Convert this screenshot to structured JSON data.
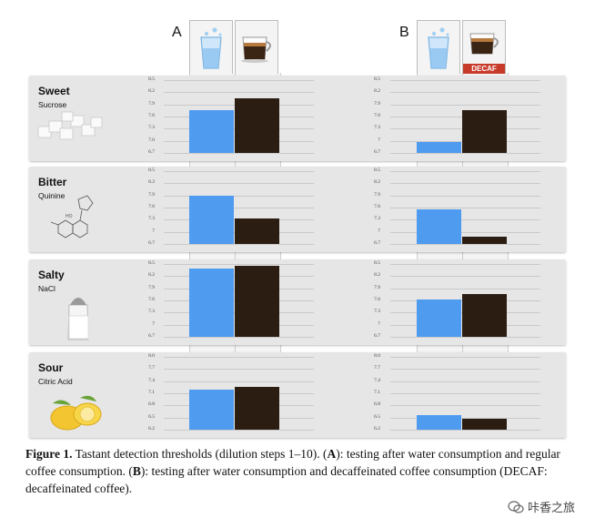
{
  "panels": [
    "A",
    "B"
  ],
  "decaf_label": "DECAF",
  "colors": {
    "water": "#4e9bf0",
    "coffee": "#2b1d12",
    "panel_bg": "#e6e6e6"
  },
  "icons": {
    "water": "water-glass-icon",
    "coffee": "espresso-cup-icon"
  },
  "caption": {
    "fig": "Figure 1.",
    "text1": " Tastant detection thresholds (dilution steps 1–10). (",
    "a": "A",
    "text2": "): testing after water consumption and regular coffee consumption. (",
    "b": "B",
    "text3": "): testing after water consumption and decaffeinated coffee consumption (DECAF: decaffeinated coffee)."
  },
  "watermark": "咔香之旅",
  "chart_data": [
    {
      "type": "bar",
      "row": "Sweet",
      "chem": "Sucrose",
      "panel": "A",
      "categories": [
        "Water",
        "Coffee"
      ],
      "values": [
        7.75,
        8.05
      ],
      "ylim": [
        6.7,
        8.5
      ],
      "ticks": [
        "8.5",
        "8.2",
        "7.9",
        "7.6",
        "7.3",
        "7.0",
        "6.7"
      ]
    },
    {
      "type": "bar",
      "row": "Sweet",
      "chem": "Sucrose",
      "panel": "B",
      "categories": [
        "Water",
        "DECAF"
      ],
      "values": [
        6.98,
        7.75
      ],
      "ylim": [
        6.7,
        8.5
      ],
      "ticks": [
        "8.5",
        "8.2",
        "7.9",
        "7.6",
        "7.3",
        "7",
        "6.7"
      ]
    },
    {
      "type": "bar",
      "row": "Bitter",
      "chem": "Quinine",
      "panel": "A",
      "categories": [
        "Water",
        "Coffee"
      ],
      "values": [
        7.9,
        7.33
      ],
      "ylim": [
        6.7,
        8.5
      ],
      "ticks": [
        "8.5",
        "8.2",
        "7.9",
        "7.6",
        "7.3",
        "7",
        "6.7"
      ]
    },
    {
      "type": "bar",
      "row": "Bitter",
      "chem": "Quinine",
      "panel": "B",
      "categories": [
        "Water",
        "DECAF"
      ],
      "values": [
        7.55,
        6.87
      ],
      "ylim": [
        6.7,
        8.5
      ],
      "ticks": [
        "8.5",
        "8.2",
        "7.9",
        "7.6",
        "7.3",
        "7",
        "6.7"
      ]
    },
    {
      "type": "bar",
      "row": "Salty",
      "chem": "NaCl",
      "panel": "A",
      "categories": [
        "Water",
        "Coffee"
      ],
      "values": [
        8.38,
        8.45
      ],
      "ylim": [
        6.7,
        8.5
      ],
      "ticks": [
        "8.5",
        "8.2",
        "7.9",
        "7.6",
        "7.3",
        "7",
        "6.7"
      ]
    },
    {
      "type": "bar",
      "row": "Salty",
      "chem": "NaCl",
      "panel": "B",
      "categories": [
        "Water",
        "DECAF"
      ],
      "values": [
        7.62,
        7.75
      ],
      "ylim": [
        6.7,
        8.5
      ],
      "ticks": [
        "8.5",
        "8.2",
        "7.9",
        "7.6",
        "7.3",
        "7",
        "6.7"
      ]
    },
    {
      "type": "bar",
      "row": "Sour",
      "chem": "Citric Acid",
      "panel": "A",
      "categories": [
        "Water",
        "Coffee"
      ],
      "values": [
        7.2,
        7.25
      ],
      "ylim": [
        6.2,
        8.0
      ],
      "ticks": [
        "8.0",
        "7.7",
        "7.4",
        "7.1",
        "6.8",
        "6.5",
        "6.2"
      ]
    },
    {
      "type": "bar",
      "row": "Sour",
      "chem": "Citric Acid",
      "panel": "B",
      "categories": [
        "Water",
        "DECAF"
      ],
      "values": [
        6.55,
        6.48
      ],
      "ylim": [
        6.2,
        8.0
      ],
      "ticks": [
        "8.0",
        "7.7",
        "7.4",
        "7.1",
        "6.8",
        "6.5",
        "6.2"
      ]
    }
  ]
}
